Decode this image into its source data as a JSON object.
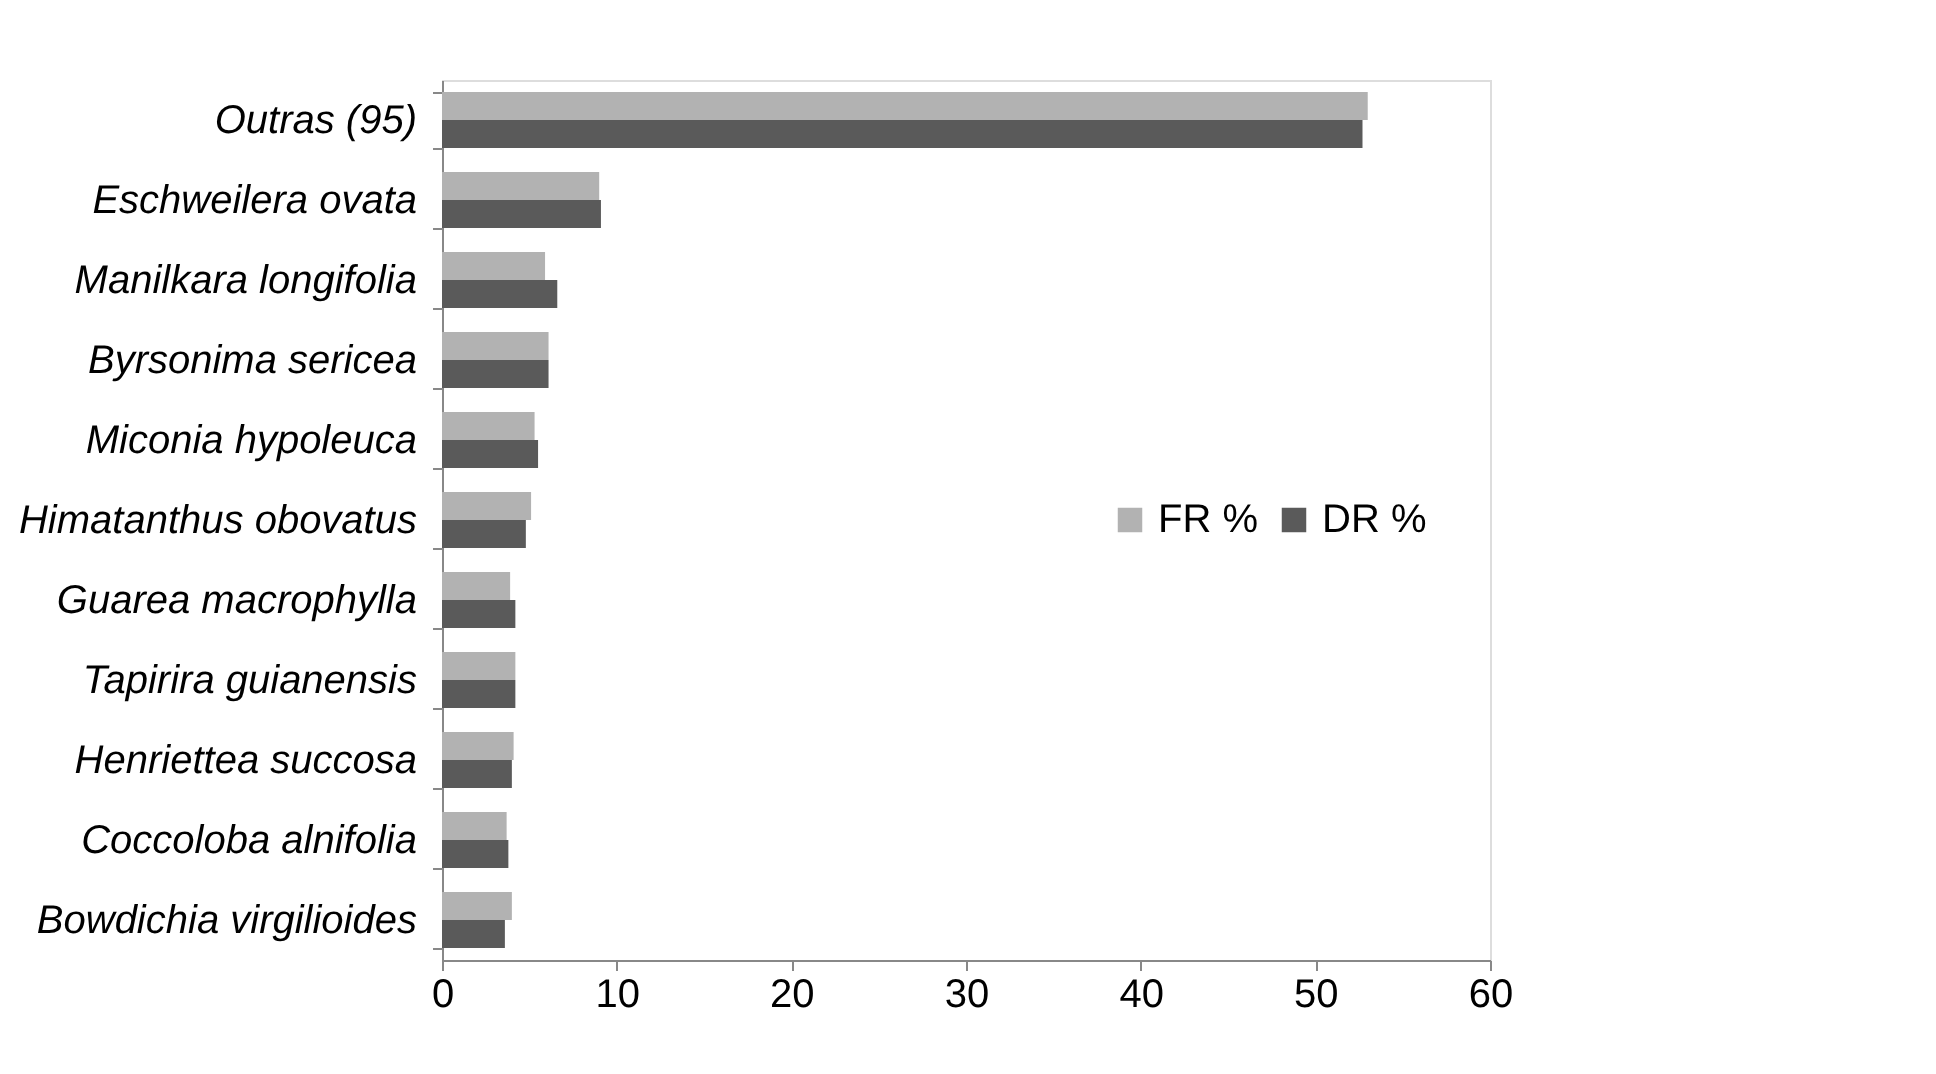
{
  "chart_data": {
    "type": "bar",
    "orientation": "horizontal",
    "categories": [
      "Outras (95)",
      "Eschweilera ovata",
      "Manilkara longifolia",
      "Byrsonima sericea",
      "Miconia hypoleuca",
      "Himatanthus obovatus",
      "Guarea macrophylla",
      "Tapirira guianensis",
      "Henriettea succosa",
      "Coccoloba alnifolia",
      "Bowdichia virgilioides"
    ],
    "series": [
      {
        "name": "FR %",
        "color": "#b2b2b2",
        "values": [
          53.0,
          9.0,
          5.9,
          6.1,
          5.3,
          5.1,
          3.9,
          4.2,
          4.1,
          3.7,
          4.0
        ]
      },
      {
        "name": "DR %",
        "color": "#5a5a5a",
        "values": [
          52.7,
          9.1,
          6.6,
          6.1,
          5.5,
          4.8,
          4.2,
          4.2,
          4.0,
          3.8,
          3.6
        ]
      }
    ],
    "xlim": [
      0,
      60
    ],
    "xticks": [
      0,
      10,
      20,
      30,
      40,
      50,
      60
    ],
    "grid": false,
    "legend": "right"
  }
}
